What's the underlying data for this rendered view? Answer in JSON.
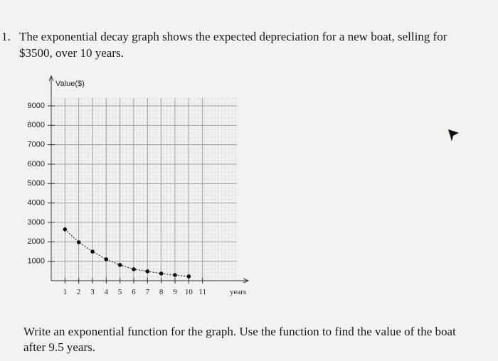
{
  "question": {
    "number": "1.",
    "lines": [
      "The exponential decay graph shows the expected depreciation for a new boat, selling for",
      "$3500, over 10 years."
    ]
  },
  "prompt": {
    "lines": [
      "Write an exponential function for the graph.  Use the function to find the value of the boat",
      "after 9.5 years."
    ]
  },
  "chart_data": {
    "type": "scatter",
    "y_label": "Value($)",
    "x_label": "years",
    "x": [
      1,
      2,
      3,
      4,
      5,
      6,
      7,
      8,
      9,
      10
    ],
    "series": [
      {
        "color": "#111111",
        "values": [
          2640,
          1980,
          1500,
          1100,
          810,
          590,
          480,
          370,
          290,
          220
        ]
      }
    ],
    "xlim": [
      0,
      13.5
    ],
    "ylim": [
      0,
      9400
    ],
    "xticks": [
      1,
      2,
      3,
      4,
      5,
      6,
      7,
      8,
      9,
      10,
      11
    ],
    "yticks": [
      1000,
      2000,
      3000,
      4000,
      5000,
      6000,
      7000,
      8000,
      9000
    ],
    "grid": true
  }
}
